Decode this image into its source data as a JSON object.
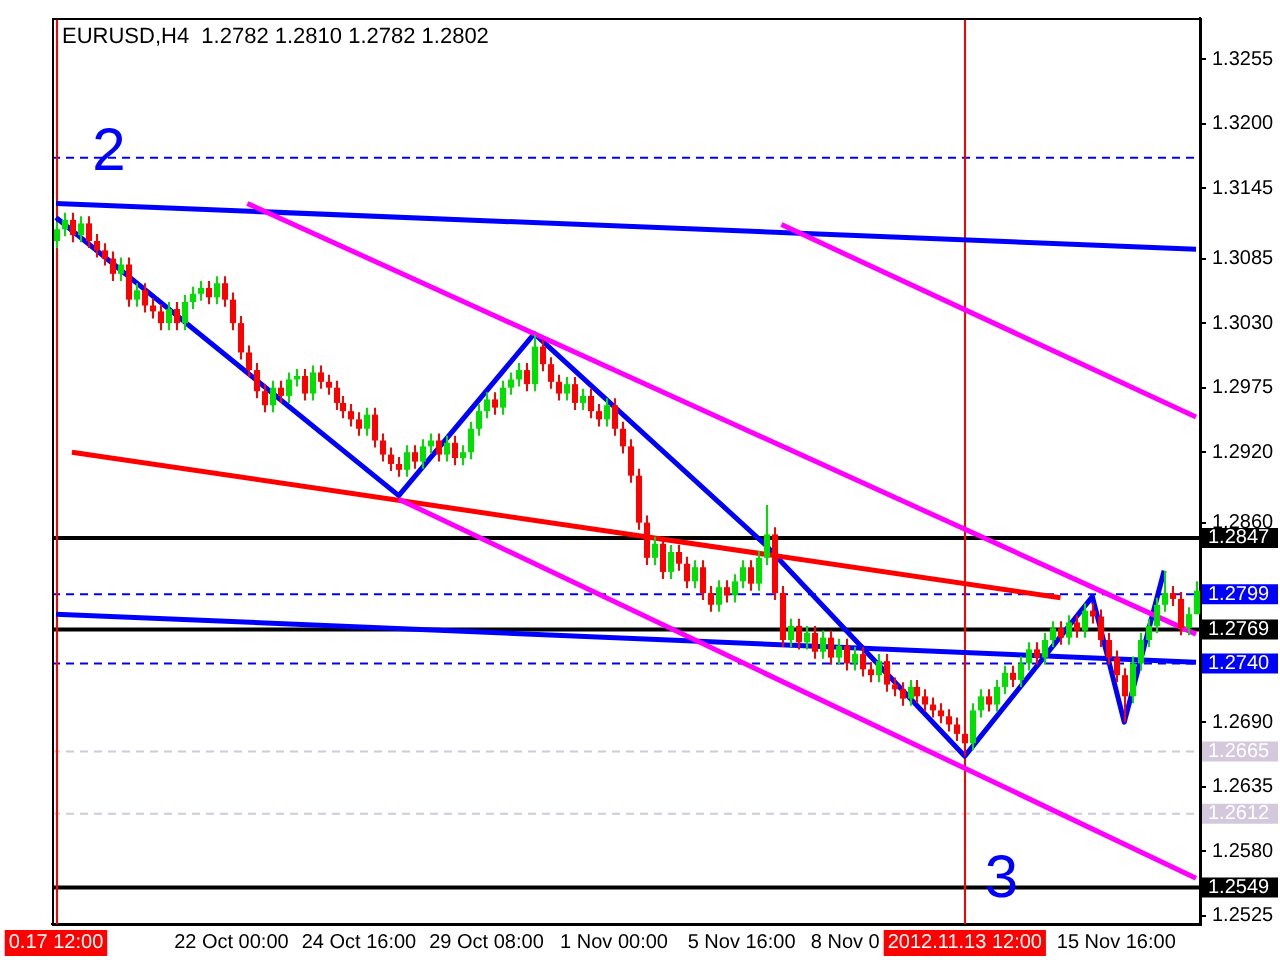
{
  "chart_data": {
    "type": "candlestick",
    "title": "EURUSD,H4  1.2782 1.2810 1.2782 1.2802",
    "categories": [
      "0.17 12:00",
      null,
      null,
      null,
      null,
      null,
      null,
      null,
      null,
      null,
      null,
      null,
      null,
      null,
      null,
      null,
      null,
      null,
      null,
      null,
      null,
      null,
      "22 Oct 00:00",
      null,
      null,
      null,
      null,
      null,
      null,
      null,
      null,
      null,
      null,
      null,
      null,
      null,
      null,
      null,
      "24 Oct 16:00",
      null,
      null,
      null,
      null,
      null,
      null,
      null,
      null,
      null,
      null,
      null,
      null,
      null,
      null,
      null,
      "29 Oct 08:00",
      null,
      null,
      null,
      null,
      null,
      null,
      null,
      null,
      null,
      null,
      null,
      null,
      null,
      null,
      null,
      "1 Nov 00:00",
      null,
      null,
      null,
      null,
      null,
      null,
      null,
      null,
      null,
      null,
      null,
      null,
      null,
      null,
      null,
      "5 Nov 16:00",
      null,
      null,
      null,
      null,
      null,
      null,
      null,
      null,
      null,
      null,
      null,
      null,
      "8 Nov 0",
      null,
      null,
      null,
      null,
      null,
      null,
      null,
      null,
      null,
      null,
      null,
      null,
      null,
      null,
      "2012.11.13 12:00",
      null,
      null,
      null,
      null,
      null,
      null,
      null,
      null,
      null,
      null,
      null,
      null,
      null,
      null,
      null,
      null,
      null,
      null,
      "15 Nov 16:00",
      null,
      null,
      null,
      null,
      null,
      null,
      null,
      null,
      null,
      null
    ],
    "ohlc": [
      [
        1.31,
        1.3116,
        1.3094,
        1.311
      ],
      [
        1.311,
        1.3124,
        1.3104,
        1.3118
      ],
      [
        1.3118,
        1.3124,
        1.3099,
        1.3105
      ],
      [
        1.3105,
        1.3121,
        1.3099,
        1.3115
      ],
      [
        1.3115,
        1.3121,
        1.3094,
        1.31
      ],
      [
        1.31,
        1.3106,
        1.3086,
        1.3092
      ],
      [
        1.3092,
        1.3098,
        1.3079,
        1.3085
      ],
      [
        1.3085,
        1.3091,
        1.3066,
        1.3072
      ],
      [
        1.3072,
        1.3086,
        1.3066,
        1.308
      ],
      [
        1.308,
        1.3086,
        1.3044,
        1.305
      ],
      [
        1.305,
        1.3064,
        1.3044,
        1.3058
      ],
      [
        1.3058,
        1.3064,
        1.3039,
        1.3045
      ],
      [
        1.3045,
        1.3051,
        1.3034,
        1.304
      ],
      [
        1.304,
        1.3046,
        1.3024,
        1.303
      ],
      [
        1.303,
        1.3048,
        1.3024,
        1.3042
      ],
      [
        1.3042,
        1.3048,
        1.3024,
        1.303
      ],
      [
        1.303,
        1.3054,
        1.3024,
        1.3048
      ],
      [
        1.3048,
        1.3061,
        1.3042,
        1.3055
      ],
      [
        1.3055,
        1.3066,
        1.3049,
        1.306
      ],
      [
        1.306,
        1.3066,
        1.3046,
        1.3052
      ],
      [
        1.3052,
        1.307,
        1.3046,
        1.3064
      ],
      [
        1.3064,
        1.307,
        1.3044,
        1.305
      ],
      [
        1.305,
        1.3056,
        1.3024,
        1.303
      ],
      [
        1.303,
        1.3036,
        1.2999,
        1.3005
      ],
      [
        1.3005,
        1.3011,
        1.2984,
        1.299
      ],
      [
        1.299,
        1.2996,
        1.2966,
        1.2972
      ],
      [
        1.2972,
        1.2978,
        1.2954,
        1.296
      ],
      [
        1.296,
        1.2981,
        1.2954,
        1.2975
      ],
      [
        1.2975,
        1.2981,
        1.2962,
        1.2968
      ],
      [
        1.2968,
        1.2988,
        1.2962,
        1.2982
      ],
      [
        1.2982,
        1.2991,
        1.2976,
        1.2985
      ],
      [
        1.2985,
        1.2991,
        1.2964,
        1.297
      ],
      [
        1.297,
        1.2994,
        1.2964,
        1.2988
      ],
      [
        1.2988,
        1.2994,
        1.2974,
        1.298
      ],
      [
        1.298,
        1.2986,
        1.2969,
        1.2975
      ],
      [
        1.2975,
        1.2981,
        1.2956,
        1.2962
      ],
      [
        1.2962,
        1.2968,
        1.2949,
        1.2955
      ],
      [
        1.2955,
        1.2961,
        1.2942,
        1.2948
      ],
      [
        1.2948,
        1.2954,
        1.2934,
        1.294
      ],
      [
        1.294,
        1.2958,
        1.2934,
        1.2952
      ],
      [
        1.2952,
        1.2958,
        1.2924,
        1.293
      ],
      [
        1.293,
        1.2936,
        1.2912,
        1.2918
      ],
      [
        1.2918,
        1.2924,
        1.2904,
        1.291
      ],
      [
        1.291,
        1.2916,
        1.2899,
        1.2905
      ],
      [
        1.2905,
        1.2926,
        1.2899,
        1.292
      ],
      [
        1.292,
        1.2926,
        1.2906,
        1.2912
      ],
      [
        1.2912,
        1.2931,
        1.2906,
        1.2925
      ],
      [
        1.2925,
        1.2936,
        1.2919,
        1.293
      ],
      [
        1.293,
        1.2936,
        1.2912,
        1.2918
      ],
      [
        1.2918,
        1.2934,
        1.2912,
        1.2928
      ],
      [
        1.2928,
        1.2934,
        1.2909,
        1.2915
      ],
      [
        1.2915,
        1.2926,
        1.2909,
        1.292
      ],
      [
        1.292,
        1.2946,
        1.2914,
        1.294
      ],
      [
        1.294,
        1.2961,
        1.2934,
        1.2955
      ],
      [
        1.2955,
        1.2971,
        1.2949,
        1.2965
      ],
      [
        1.2965,
        1.2971,
        1.2952,
        1.2958
      ],
      [
        1.2958,
        1.2981,
        1.2952,
        1.2975
      ],
      [
        1.2975,
        1.2988,
        1.2969,
        1.2982
      ],
      [
        1.2982,
        1.2996,
        1.2976,
        1.299
      ],
      [
        1.299,
        1.2996,
        1.2972,
        1.2978
      ],
      [
        1.2978,
        1.302,
        1.2972,
        1.301
      ],
      [
        1.301,
        1.3016,
        1.2989,
        1.2995
      ],
      [
        1.2995,
        1.3001,
        1.2974,
        1.298
      ],
      [
        1.298,
        1.2986,
        1.2964,
        1.297
      ],
      [
        1.297,
        1.2984,
        1.2964,
        1.2978
      ],
      [
        1.2978,
        1.2984,
        1.2956,
        1.2962
      ],
      [
        1.2962,
        1.2974,
        1.2956,
        1.2968
      ],
      [
        1.2968,
        1.2974,
        1.2949,
        1.2955
      ],
      [
        1.2955,
        1.2961,
        1.2942,
        1.2948
      ],
      [
        1.2948,
        1.2966,
        1.2942,
        1.296
      ],
      [
        1.296,
        1.2966,
        1.2934,
        1.294
      ],
      [
        1.294,
        1.2946,
        1.2919,
        1.2925
      ],
      [
        1.2925,
        1.2931,
        1.2894,
        1.29
      ],
      [
        1.29,
        1.2906,
        1.2854,
        1.286
      ],
      [
        1.286,
        1.2866,
        1.2824,
        1.283
      ],
      [
        1.283,
        1.2848,
        1.2824,
        1.2842
      ],
      [
        1.2842,
        1.2848,
        1.2812,
        1.2818
      ],
      [
        1.2818,
        1.2841,
        1.2812,
        1.2835
      ],
      [
        1.2835,
        1.2841,
        1.2819,
        1.2825
      ],
      [
        1.2825,
        1.2831,
        1.2804,
        1.281
      ],
      [
        1.281,
        1.2828,
        1.2804,
        1.2822
      ],
      [
        1.2822,
        1.2828,
        1.2794,
        1.28
      ],
      [
        1.28,
        1.2806,
        1.2784,
        1.279
      ],
      [
        1.279,
        1.2811,
        1.2784,
        1.2805
      ],
      [
        1.2805,
        1.2811,
        1.2792,
        1.2798
      ],
      [
        1.2798,
        1.2816,
        1.2792,
        1.281
      ],
      [
        1.281,
        1.2828,
        1.2804,
        1.2822
      ],
      [
        1.2822,
        1.2828,
        1.2802,
        1.2808
      ],
      [
        1.2808,
        1.2836,
        1.2802,
        1.283
      ],
      [
        1.283,
        1.2875,
        1.2824,
        1.285
      ],
      [
        1.285,
        1.2856,
        1.2794,
        1.28
      ],
      [
        1.28,
        1.2806,
        1.2754,
        1.276
      ],
      [
        1.276,
        1.2778,
        1.2754,
        1.2772
      ],
      [
        1.2772,
        1.2778,
        1.2752,
        1.2758
      ],
      [
        1.2758,
        1.2772,
        1.2752,
        1.2766
      ],
      [
        1.2766,
        1.2772,
        1.2744,
        1.275
      ],
      [
        1.275,
        1.2768,
        1.2744,
        1.2762
      ],
      [
        1.2762,
        1.2768,
        1.2739,
        1.2745
      ],
      [
        1.2745,
        1.2761,
        1.2739,
        1.2755
      ],
      [
        1.2755,
        1.2761,
        1.2734,
        1.274
      ],
      [
        1.274,
        1.2754,
        1.2734,
        1.2748
      ],
      [
        1.2748,
        1.2754,
        1.2729,
        1.2735
      ],
      [
        1.2735,
        1.2741,
        1.2724,
        1.273
      ],
      [
        1.273,
        1.2748,
        1.2724,
        1.2742
      ],
      [
        1.2742,
        1.2748,
        1.2716,
        1.2722
      ],
      [
        1.2722,
        1.2728,
        1.2712,
        1.2718
      ],
      [
        1.2718,
        1.2724,
        1.2704,
        1.271
      ],
      [
        1.271,
        1.2726,
        1.2704,
        1.272
      ],
      [
        1.272,
        1.2726,
        1.2706,
        1.2712
      ],
      [
        1.2712,
        1.2718,
        1.2699,
        1.2705
      ],
      [
        1.2705,
        1.2711,
        1.2694,
        1.27
      ],
      [
        1.27,
        1.2706,
        1.2689,
        1.2695
      ],
      [
        1.2695,
        1.2701,
        1.2682,
        1.2688
      ],
      [
        1.2688,
        1.2694,
        1.2674,
        1.268
      ],
      [
        1.268,
        1.2686,
        1.2661,
        1.2672
      ],
      [
        1.2672,
        1.2706,
        1.2666,
        1.27
      ],
      [
        1.27,
        1.2718,
        1.2694,
        1.2712
      ],
      [
        1.2712,
        1.2718,
        1.2699,
        1.2705
      ],
      [
        1.2705,
        1.2726,
        1.2699,
        1.272
      ],
      [
        1.272,
        1.2738,
        1.2714,
        1.2732
      ],
      [
        1.2732,
        1.2738,
        1.272,
        1.2726
      ],
      [
        1.2726,
        1.2746,
        1.272,
        1.274
      ],
      [
        1.274,
        1.2758,
        1.2734,
        1.2752
      ],
      [
        1.2752,
        1.2758,
        1.2739,
        1.2745
      ],
      [
        1.2745,
        1.2766,
        1.2739,
        1.276
      ],
      [
        1.276,
        1.2776,
        1.2754,
        1.277
      ],
      [
        1.277,
        1.2776,
        1.2756,
        1.2762
      ],
      [
        1.2762,
        1.2781,
        1.2756,
        1.2775
      ],
      [
        1.2775,
        1.2781,
        1.2762,
        1.2768
      ],
      [
        1.2768,
        1.2791,
        1.2762,
        1.2785
      ],
      [
        1.2785,
        1.2791,
        1.2774,
        1.278
      ],
      [
        1.278,
        1.2786,
        1.2754,
        1.276
      ],
      [
        1.276,
        1.2766,
        1.2739,
        1.2745
      ],
      [
        1.2745,
        1.2751,
        1.2724,
        1.273
      ],
      [
        1.273,
        1.2736,
        1.269,
        1.2712
      ],
      [
        1.2712,
        1.2746,
        1.2706,
        1.274
      ],
      [
        1.274,
        1.2766,
        1.2734,
        1.276
      ],
      [
        1.276,
        1.2778,
        1.2754,
        1.2772
      ],
      [
        1.2772,
        1.2796,
        1.2766,
        1.279
      ],
      [
        1.279,
        1.2819,
        1.2784,
        1.28
      ],
      [
        1.28,
        1.2806,
        1.2789,
        1.2795
      ],
      [
        1.2795,
        1.2801,
        1.2764,
        1.277
      ],
      [
        1.277,
        1.2788,
        1.2764,
        1.2782
      ],
      [
        1.2782,
        1.281,
        1.2782,
        1.2802
      ]
    ],
    "series": [
      {
        "type": "line",
        "color": "#ff00ff",
        "values": [
          null,
          null,
          null,
          null,
          null,
          null,
          null,
          null,
          null,
          null,
          null,
          null,
          null,
          null,
          null,
          null,
          null,
          null,
          null,
          null,
          null,
          null,
          null,
          null,
          1.3132,
          null,
          null,
          null,
          null,
          null,
          null,
          null,
          null,
          null,
          null,
          null,
          null,
          null,
          null,
          null,
          null,
          null,
          null,
          null,
          null,
          null,
          null,
          null,
          null,
          null,
          null,
          null,
          null,
          null,
          null,
          null,
          null,
          null,
          null,
          null,
          null,
          null,
          null,
          null,
          null,
          null,
          null,
          null,
          null,
          null,
          null,
          null,
          null,
          null,
          null,
          null,
          null,
          null,
          null,
          null,
          null,
          null,
          null,
          null,
          null,
          null,
          null,
          null,
          null,
          null,
          null,
          null,
          null,
          null,
          null,
          null,
          null,
          null,
          null,
          null,
          null,
          null,
          null,
          null,
          null,
          null,
          null,
          null,
          null,
          null,
          null,
          null,
          null,
          null,
          null,
          null,
          null,
          null,
          null,
          null,
          null,
          null,
          null,
          null,
          null,
          null,
          null,
          null,
          null,
          null,
          null,
          null,
          null,
          null,
          null,
          null,
          null,
          null,
          null,
          null,
          null,
          null,
          null,
          1.2765
        ]
      },
      {
        "type": "line",
        "color": "#ff00ff",
        "values": [
          null,
          null,
          null,
          null,
          null,
          null,
          null,
          null,
          null,
          null,
          null,
          null,
          null,
          null,
          null,
          null,
          null,
          null,
          null,
          null,
          null,
          null,
          null,
          null,
          null,
          null,
          null,
          null,
          null,
          null,
          null,
          null,
          null,
          null,
          null,
          null,
          null,
          null,
          null,
          null,
          null,
          null,
          null,
          1.288,
          null,
          null,
          null,
          null,
          null,
          null,
          null,
          null,
          null,
          null,
          null,
          null,
          null,
          null,
          null,
          null,
          null,
          null,
          null,
          null,
          null,
          null,
          null,
          null,
          null,
          null,
          null,
          null,
          null,
          null,
          null,
          null,
          null,
          null,
          null,
          null,
          null,
          null,
          null,
          null,
          null,
          null,
          null,
          null,
          null,
          null,
          null,
          null,
          null,
          null,
          null,
          null,
          null,
          null,
          null,
          null,
          null,
          null,
          null,
          null,
          null,
          null,
          null,
          null,
          null,
          null,
          null,
          null,
          null,
          null,
          null,
          null,
          null,
          null,
          null,
          null,
          null,
          null,
          null,
          null,
          null,
          null,
          null,
          null,
          null,
          null,
          null,
          null,
          null,
          null,
          null,
          null,
          null,
          null,
          null,
          null,
          null,
          null,
          null,
          1.2557
        ]
      },
      {
        "type": "line",
        "color": "#ff00ff",
        "values": [
          null,
          null,
          null,
          null,
          null,
          null,
          null,
          null,
          null,
          null,
          null,
          null,
          null,
          null,
          null,
          null,
          null,
          null,
          null,
          null,
          null,
          null,
          null,
          null,
          null,
          null,
          null,
          null,
          null,
          null,
          null,
          null,
          null,
          null,
          null,
          null,
          null,
          null,
          null,
          null,
          null,
          null,
          null,
          null,
          null,
          null,
          null,
          null,
          null,
          null,
          null,
          null,
          null,
          null,
          null,
          null,
          null,
          null,
          null,
          null,
          null,
          null,
          null,
          null,
          null,
          null,
          null,
          null,
          null,
          null,
          null,
          null,
          null,
          null,
          null,
          null,
          null,
          null,
          null,
          null,
          null,
          null,
          null,
          null,
          null,
          null,
          null,
          null,
          null,
          null,
          null,
          1.3114,
          null,
          null,
          null,
          null,
          null,
          null,
          null,
          null,
          null,
          null,
          null,
          null,
          null,
          null,
          null,
          null,
          null,
          null,
          null,
          null,
          null,
          null,
          null,
          null,
          null,
          null,
          null,
          null,
          null,
          null,
          null,
          null,
          null,
          null,
          null,
          null,
          null,
          null,
          null,
          null,
          null,
          null,
          null,
          null,
          null,
          null,
          null,
          null,
          null,
          null,
          null,
          1.295
        ]
      },
      {
        "type": "line",
        "color": "#ff0000",
        "values": [
          null,
          null,
          1.292,
          null,
          null,
          null,
          null,
          null,
          null,
          null,
          null,
          null,
          null,
          null,
          null,
          null,
          null,
          null,
          null,
          null,
          null,
          null,
          null,
          null,
          null,
          null,
          null,
          null,
          null,
          null,
          null,
          null,
          null,
          null,
          null,
          null,
          null,
          null,
          null,
          null,
          null,
          null,
          null,
          null,
          null,
          null,
          null,
          null,
          null,
          null,
          null,
          null,
          null,
          null,
          null,
          null,
          null,
          null,
          null,
          null,
          null,
          null,
          null,
          null,
          null,
          null,
          null,
          null,
          null,
          null,
          null,
          null,
          null,
          null,
          null,
          null,
          null,
          null,
          null,
          null,
          null,
          null,
          null,
          null,
          null,
          null,
          null,
          null,
          null,
          null,
          null,
          null,
          null,
          null,
          null,
          null,
          null,
          null,
          null,
          null,
          null,
          null,
          null,
          null,
          null,
          null,
          null,
          null,
          null,
          null,
          null,
          null,
          null,
          null,
          null,
          null,
          null,
          null,
          null,
          null,
          null,
          null,
          null,
          null,
          null,
          null,
          1.2796,
          null,
          null,
          null,
          null,
          null,
          null,
          null,
          null,
          null,
          null,
          null,
          null,
          null,
          null,
          null,
          null,
          null
        ]
      },
      {
        "type": "line",
        "color": "#0000ff",
        "values": [
          1.3132,
          null,
          null,
          null,
          null,
          null,
          null,
          null,
          null,
          null,
          null,
          null,
          null,
          null,
          null,
          null,
          null,
          null,
          null,
          null,
          null,
          null,
          null,
          null,
          null,
          null,
          null,
          null,
          null,
          null,
          null,
          null,
          null,
          null,
          null,
          null,
          null,
          null,
          null,
          null,
          null,
          null,
          null,
          null,
          null,
          null,
          null,
          null,
          null,
          null,
          null,
          null,
          null,
          null,
          null,
          null,
          null,
          null,
          null,
          null,
          null,
          null,
          null,
          null,
          null,
          null,
          null,
          null,
          null,
          null,
          null,
          null,
          null,
          null,
          null,
          null,
          null,
          null,
          null,
          null,
          null,
          null,
          null,
          null,
          null,
          null,
          null,
          null,
          null,
          null,
          null,
          null,
          null,
          null,
          null,
          null,
          null,
          null,
          null,
          null,
          null,
          null,
          null,
          null,
          null,
          null,
          null,
          null,
          null,
          null,
          null,
          null,
          null,
          null,
          null,
          null,
          null,
          null,
          null,
          null,
          null,
          null,
          null,
          null,
          null,
          null,
          null,
          null,
          null,
          null,
          null,
          null,
          null,
          null,
          null,
          null,
          null,
          null,
          null,
          null,
          null,
          null,
          null,
          1.3093
        ]
      },
      {
        "type": "line",
        "color": "#0000ff",
        "values": [
          1.2782,
          null,
          null,
          null,
          null,
          null,
          null,
          null,
          null,
          null,
          null,
          null,
          null,
          null,
          null,
          null,
          null,
          null,
          null,
          null,
          null,
          null,
          null,
          null,
          null,
          null,
          null,
          null,
          null,
          null,
          null,
          null,
          null,
          null,
          null,
          null,
          null,
          null,
          null,
          null,
          null,
          null,
          null,
          null,
          null,
          null,
          null,
          null,
          null,
          null,
          null,
          null,
          null,
          null,
          null,
          null,
          null,
          null,
          null,
          null,
          null,
          null,
          null,
          null,
          null,
          null,
          null,
          null,
          null,
          null,
          null,
          null,
          null,
          null,
          null,
          null,
          null,
          null,
          null,
          null,
          null,
          null,
          null,
          null,
          null,
          null,
          null,
          null,
          null,
          null,
          null,
          null,
          null,
          null,
          null,
          null,
          null,
          null,
          null,
          null,
          null,
          null,
          null,
          null,
          null,
          null,
          null,
          null,
          null,
          null,
          null,
          null,
          null,
          null,
          null,
          null,
          null,
          null,
          null,
          null,
          null,
          null,
          null,
          null,
          null,
          null,
          null,
          null,
          null,
          null,
          null,
          null,
          null,
          null,
          null,
          null,
          null,
          null,
          null,
          null,
          null,
          null,
          null,
          1.2741
        ]
      },
      {
        "type": "line",
        "color": "#0000ff",
        "values": [
          1.312,
          null,
          null,
          null,
          null,
          null,
          null,
          null,
          null,
          null,
          null,
          null,
          null,
          null,
          null,
          null,
          null,
          null,
          null,
          null,
          null,
          null,
          null,
          null,
          null,
          null,
          null,
          null,
          null,
          null,
          null,
          null,
          null,
          null,
          null,
          null,
          null,
          null,
          null,
          null,
          null,
          null,
          null,
          1.2883,
          null,
          null,
          null,
          null,
          null,
          null,
          null,
          null,
          null,
          null,
          null,
          null,
          null,
          null,
          null,
          null,
          1.3021,
          null,
          null,
          null,
          null,
          null,
          null,
          null,
          null,
          null,
          null,
          null,
          null,
          null,
          null,
          null,
          null,
          null,
          null,
          null,
          null,
          null,
          null,
          null,
          null,
          null,
          null,
          null,
          null,
          1.2841,
          null,
          null,
          null,
          null,
          null,
          null,
          null,
          null,
          null,
          null,
          null,
          null,
          null,
          null,
          null,
          null,
          null,
          null,
          null,
          null,
          null,
          null,
          null,
          null,
          1.2661,
          null,
          null,
          null,
          null,
          null,
          null,
          null,
          null,
          null,
          null,
          null,
          null,
          null,
          null,
          null,
          1.2797,
          null,
          null,
          null,
          1.269,
          null,
          null,
          null,
          null,
          1.2819,
          null,
          null,
          null,
          null
        ]
      }
    ],
    "ylim": [
      1.2518,
      1.329
    ],
    "yticks": [
      {
        "value": 1.3255,
        "label": "1.3255"
      },
      {
        "value": 1.32,
        "label": "1.3200"
      },
      {
        "value": 1.3145,
        "label": "1.3145"
      },
      {
        "value": 1.3085,
        "label": "1.3085"
      },
      {
        "value": 1.303,
        "label": "1.3030"
      },
      {
        "value": 1.2975,
        "label": "1.2975"
      },
      {
        "value": 1.292,
        "label": "1.2920"
      },
      {
        "value": 1.286,
        "label": "1.2860"
      },
      {
        "value": 1.269,
        "label": "1.2690"
      },
      {
        "value": 1.2635,
        "label": "1.2635"
      },
      {
        "value": 1.258,
        "label": "1.2580"
      },
      {
        "value": 1.2525,
        "label": "1.2525"
      }
    ],
    "ref_lines": [
      {
        "axis": "y",
        "value": 1.3171,
        "label": null,
        "color": "#0000ff",
        "line_style": "dashed"
      },
      {
        "axis": "y",
        "value": 1.2847,
        "label": "1.2847",
        "color": "#000000",
        "line_style": "solid"
      },
      {
        "axis": "y",
        "value": 1.2799,
        "label": "1.2799",
        "color": "#0000ff",
        "line_style": "dashed"
      },
      {
        "axis": "y",
        "value": 1.2769,
        "label": "1.2769",
        "color": "#000000",
        "line_style": "solid"
      },
      {
        "axis": "y",
        "value": 1.274,
        "label": "1.2740",
        "color": "#0000ff",
        "line_style": "dashed"
      },
      {
        "axis": "y",
        "value": 1.2665,
        "label": "1.2665",
        "color": "#d4c8dc",
        "line_style": "dashed"
      },
      {
        "axis": "y",
        "value": 1.2612,
        "label": "1.2612",
        "color": "#d4c8dc",
        "line_style": "dashed"
      },
      {
        "axis": "y",
        "value": 1.2549,
        "label": "1.2549",
        "color": "#000000",
        "line_style": "solid"
      },
      {
        "axis": "x",
        "value": "0.17 12:00",
        "color": "#ff0000",
        "line_style": "solid"
      },
      {
        "axis": "x",
        "value": "2012.11.13 12:00",
        "color": "#ff0000",
        "line_style": "solid"
      }
    ],
    "annotations": [
      "2",
      {
        "text": "3",
        "x": "2012.11.13 12:00",
        "y": 1.2555
      }
    ],
    "grid": false,
    "legend": false
  }
}
